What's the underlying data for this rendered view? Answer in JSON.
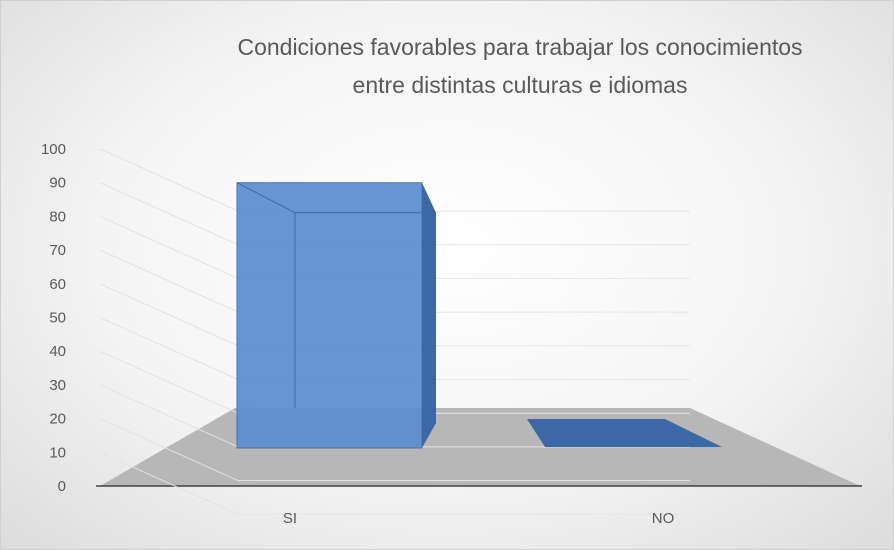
{
  "chart_data": {
    "type": "bar",
    "title_lines": [
      "Condiciones favorables para trabajar los conocimientos",
      "entre distintas culturas e idiomas"
    ],
    "categories": [
      "SI",
      "NO"
    ],
    "values": [
      90,
      10
    ],
    "ylim": [
      0,
      100
    ],
    "yticks": [
      0,
      10,
      20,
      30,
      40,
      50,
      60,
      70,
      80,
      90,
      100
    ],
    "grid": true,
    "legend": "none",
    "style": "3d-column",
    "colors": {
      "bar_front": "#5b8ccf",
      "bar_side": "#3c69a6",
      "bar_top": "#6f9bd8",
      "floor": "#b7b7b7"
    }
  }
}
